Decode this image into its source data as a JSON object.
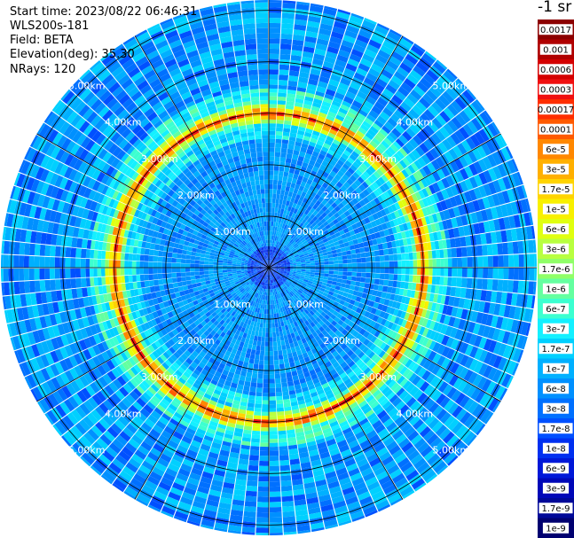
{
  "info": {
    "start_time": "Start time: 2023/08/22 06:46:31",
    "instrument": "WLS200s-181",
    "field": "Field: BETA",
    "elevation": "Elevation(deg): 35.30",
    "nrays": "NRays: 120"
  },
  "chart_data": {
    "type": "heatmap",
    "projection": "polar",
    "unit_label": "-1 sr",
    "range_labels": [
      "1.00km",
      "2.00km",
      "3.00km",
      "4.00km",
      "5.00km"
    ],
    "range_rings_km": [
      1,
      2,
      3,
      4,
      5,
      6
    ],
    "max_range_km": 5.2,
    "rays": 120,
    "ring_peak_km": 3.0,
    "colorbar": {
      "scale": "log",
      "labels": [
        "0.0017",
        "0.001",
        "0.0006",
        "0.0003",
        "0.00017",
        "0.0001",
        "6e-5",
        "3e-5",
        "1.7e-5",
        "1e-5",
        "6e-6",
        "3e-6",
        "1.7e-6",
        "1e-6",
        "6e-7",
        "3e-7",
        "1.7e-7",
        "1e-7",
        "6e-8",
        "3e-8",
        "1.7e-8",
        "1e-8",
        "6e-9",
        "3e-9",
        "1.7e-9",
        "1e-9"
      ],
      "colors": [
        "#8c0000",
        "#b00000",
        "#d40000",
        "#f01010",
        "#ff2e00",
        "#ff5a00",
        "#ff8800",
        "#ffb000",
        "#ffd400",
        "#f8f000",
        "#e0ff10",
        "#b8ff40",
        "#90ff68",
        "#64ffa0",
        "#3cffd0",
        "#14f0ff",
        "#00d0ff",
        "#00b0ff",
        "#0090ff",
        "#0070ff",
        "#0050ff",
        "#0030f0",
        "#0018d8",
        "#0008b8",
        "#000898",
        "#000070"
      ]
    }
  }
}
